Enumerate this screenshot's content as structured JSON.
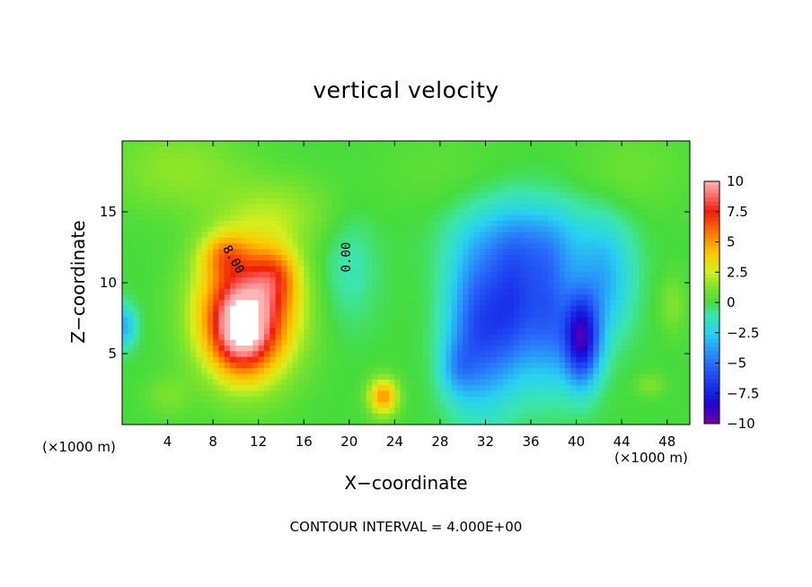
{
  "chart_data": {
    "type": "heatmap",
    "title": "vertical velocity",
    "xlabel": "X−coordinate",
    "ylabel": "Z−coordinate",
    "x_unit_left": "(×1000 m)",
    "x_unit_right": "(×1000 m)",
    "xlim": [
      0,
      50
    ],
    "ylim": [
      0,
      20
    ],
    "x_ticks": [
      4,
      8,
      12,
      16,
      20,
      24,
      28,
      32,
      36,
      40,
      44,
      48
    ],
    "y_ticks": [
      5,
      10,
      15
    ],
    "colorbar": {
      "ticks": [
        10,
        7.5,
        5,
        2.5,
        0,
        -2.5,
        -5,
        -7.5,
        -10
      ],
      "tick_labels": [
        "10",
        "7.5",
        "5",
        "2.5",
        "0",
        "−2.5",
        "−5",
        "−7.5",
        "−10"
      ],
      "range": [
        -10,
        10
      ]
    },
    "contour_labels": [
      "8.00",
      "0.00"
    ],
    "contour_interval_text": "CONTOUR INTERVAL = 4.000E+00",
    "features": [
      {
        "type": "updraft",
        "x": 11,
        "z": 7,
        "peak": 12
      },
      {
        "type": "updraft",
        "x": 23,
        "z": 2,
        "peak": 5
      },
      {
        "type": "downdraft",
        "x": 40.5,
        "z": 6,
        "peak": -12
      },
      {
        "type": "downdraft",
        "x": 31.5,
        "z": 7,
        "peak": -8
      },
      {
        "type": "downdraft",
        "x": 37,
        "z": 7,
        "peak": -7
      }
    ]
  }
}
